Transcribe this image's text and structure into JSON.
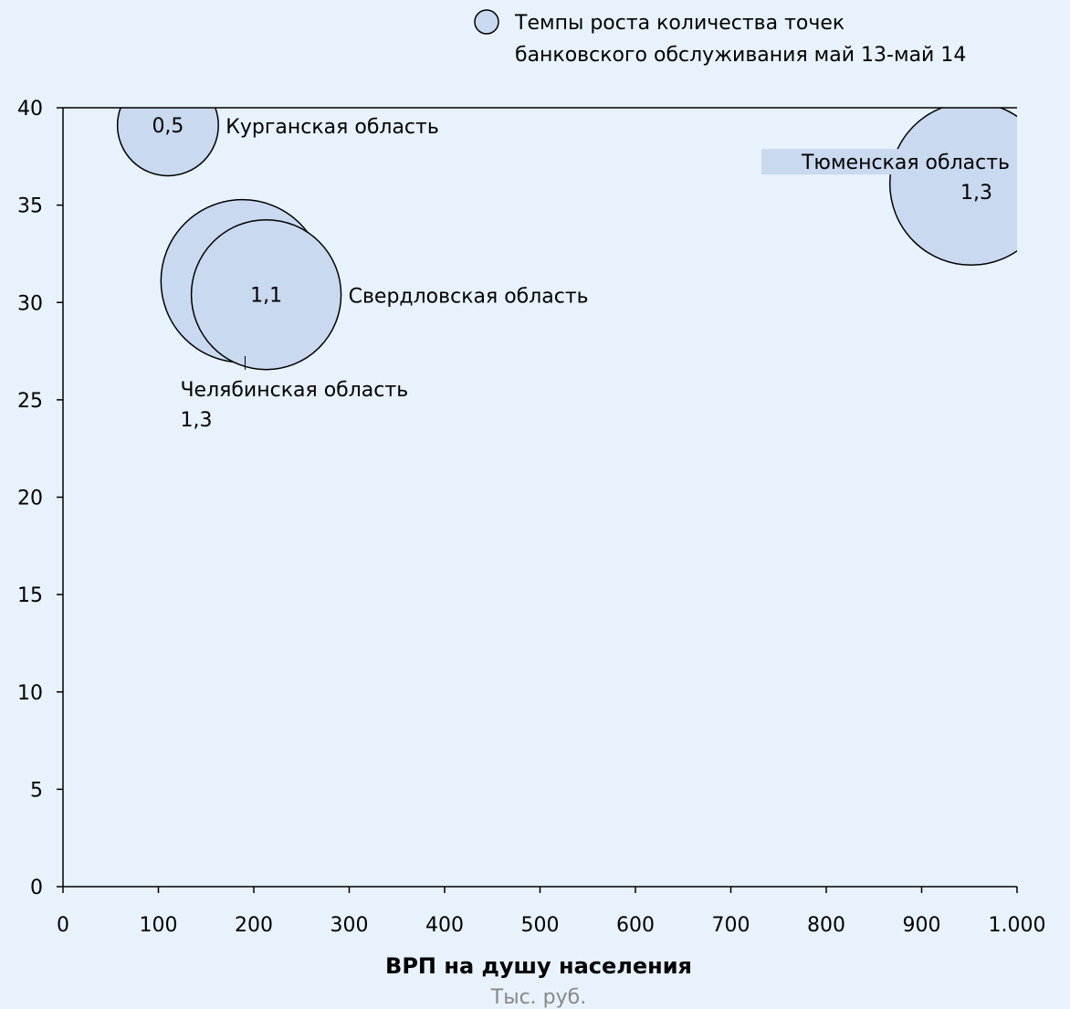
{
  "chart_data": {
    "type": "bubble",
    "series": [
      {
        "name": "Темпы роста количества точек банковского обслуживания май 13-май 14",
        "points": [
          {
            "label": "Курганская область",
            "x": 110,
            "y": 39.1,
            "size": 0.5,
            "size_label": "0,5"
          },
          {
            "label": "Челябинская область",
            "x": 188,
            "y": 31.1,
            "size": 1.3,
            "size_label": "1,3"
          },
          {
            "label": "Свердловская область",
            "x": 213,
            "y": 30.4,
            "size": 1.1,
            "size_label": "1,1"
          },
          {
            "label": "Тюменская область",
            "x": 952,
            "y": 36.1,
            "size": 1.3,
            "size_label": "1,3"
          }
        ]
      }
    ],
    "legend": {
      "placement": "top-right",
      "lines": [
        "Темпы роста количества точек",
        "банковского обслуживания май 13-май 14"
      ]
    },
    "xlabel": "ВРП на душу населения",
    "xunit": "Тыс. руб.",
    "ylabel": "",
    "xlim": [
      0,
      1000
    ],
    "ylim": [
      0,
      40
    ],
    "xticks": [
      "0",
      "100",
      "200",
      "300",
      "400",
      "500",
      "600",
      "700",
      "800",
      "900",
      "1.000"
    ],
    "yticks": [
      "0",
      "5",
      "10",
      "15",
      "20",
      "25",
      "30",
      "35",
      "40"
    ],
    "grid": false,
    "colors": {
      "background": "#e8f2fc",
      "bubble_fill": "#c9d9ef",
      "bubble_stroke": "#000000"
    }
  }
}
